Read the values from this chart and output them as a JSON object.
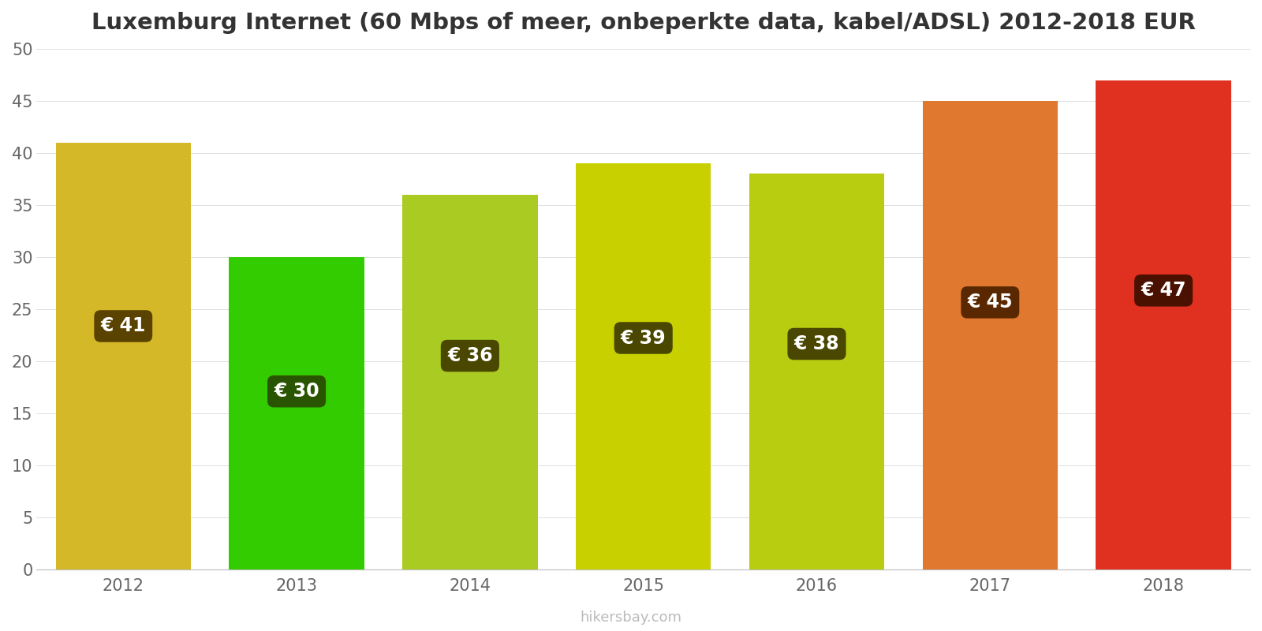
{
  "title": "Luxemburg Internet (60 Mbps of meer, onbeperkte data, kabel/ADSL) 2012-2018 EUR",
  "years": [
    2012,
    2013,
    2014,
    2015,
    2016,
    2017,
    2018
  ],
  "values": [
    41,
    30,
    36,
    39,
    38,
    45,
    47
  ],
  "bar_colors": [
    "#d4b828",
    "#33cc00",
    "#aacc22",
    "#c8d000",
    "#b8cc10",
    "#e07830",
    "#e03020"
  ],
  "label_bg_colors": [
    "#5a4200",
    "#2a5500",
    "#4a4800",
    "#4a4800",
    "#4a4800",
    "#5a2800",
    "#4a1000"
  ],
  "ylim": [
    0,
    50
  ],
  "yticks": [
    0,
    5,
    10,
    15,
    20,
    25,
    30,
    35,
    40,
    45,
    50
  ],
  "watermark": "hikersbay.com",
  "background_color": "#ffffff",
  "title_fontsize": 21,
  "tick_fontsize": 15,
  "label_fontsize": 17,
  "bar_width": 0.78
}
